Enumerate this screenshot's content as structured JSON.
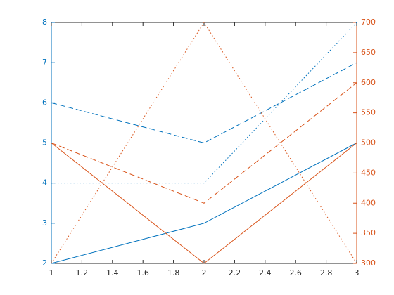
{
  "chart_data": {
    "type": "line",
    "x": [
      1,
      2,
      3
    ],
    "xlim": [
      1,
      3
    ],
    "xticks": [
      1,
      1.2,
      1.4,
      1.6,
      1.8,
      2,
      2.2,
      2.4,
      2.6,
      2.8,
      3
    ],
    "ylim": [
      2,
      8
    ],
    "yticks": [
      2,
      3,
      4,
      5,
      6,
      7,
      8
    ],
    "y2lim": [
      300,
      700
    ],
    "y2ticks": [
      300,
      350,
      400,
      450,
      500,
      550,
      600,
      650,
      700
    ],
    "y_color": "#0072bd",
    "y2_color": "#d95319",
    "series": [
      {
        "color": "#0072bd",
        "style": "solid",
        "values": [
          2,
          3,
          5
        ]
      },
      {
        "color": "#0072bd",
        "style": "dashed",
        "values": [
          6,
          5,
          7
        ]
      },
      {
        "color": "#0072bd",
        "style": "dotted",
        "values": [
          4,
          4,
          8
        ]
      },
      {
        "color": "#d95319",
        "style": "solid",
        "axis": "y2",
        "values": [
          500,
          300,
          500
        ]
      },
      {
        "color": "#d95319",
        "style": "dashed",
        "axis": "y2",
        "values": [
          500,
          400,
          600
        ]
      },
      {
        "color": "#d95319",
        "style": "dotted",
        "axis": "y2",
        "values": [
          300,
          700,
          300
        ]
      }
    ]
  }
}
